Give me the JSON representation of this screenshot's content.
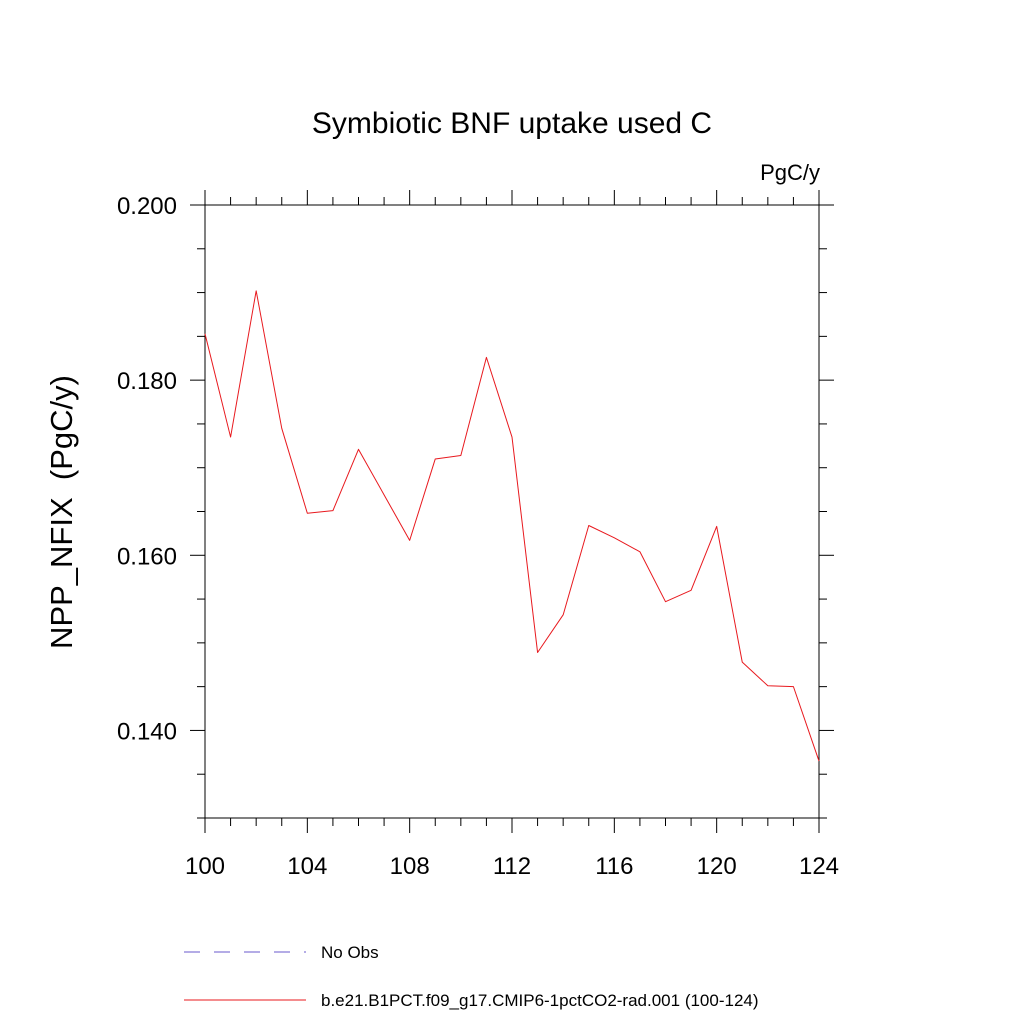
{
  "chart_data": {
    "type": "line",
    "title": "Symbiotic BNF uptake used C",
    "units_label": "PgC/y",
    "ylabel": "NPP_NFIX  (PgC/y)",
    "xlabel": "",
    "xlim": [
      100,
      124
    ],
    "ylim": [
      0.13,
      0.2
    ],
    "x_ticks": [
      100,
      104,
      108,
      112,
      116,
      120,
      124
    ],
    "x_tick_labels": [
      "100",
      "104",
      "108",
      "112",
      "116",
      "120",
      "124"
    ],
    "x_minor_step": 1,
    "y_ticks": [
      0.14,
      0.16,
      0.18,
      0.2
    ],
    "y_tick_labels": [
      "0.140",
      "0.160",
      "0.180",
      "0.200"
    ],
    "y_minor_step": 0.005,
    "grid": false,
    "legend_position": "bottom",
    "series": [
      {
        "name": "b.e21.B1PCT.f09_g17.CMIP6-1pctCO2-rad.001 (100-124)",
        "color": "#e8191e",
        "style": "solid",
        "x": [
          100,
          101,
          102,
          103,
          104,
          105,
          106,
          107,
          108,
          109,
          110,
          111,
          112,
          113,
          114,
          115,
          116,
          117,
          118,
          119,
          120,
          121,
          122,
          123,
          124
        ],
        "y": [
          0.1853,
          0.1735,
          0.1902,
          0.1745,
          0.1648,
          0.1651,
          0.1721,
          0.1669,
          0.1617,
          0.171,
          0.1714,
          0.1826,
          0.1735,
          0.1489,
          0.1532,
          0.1634,
          0.162,
          0.1604,
          0.1547,
          0.156,
          0.1633,
          0.1478,
          0.1451,
          0.145,
          0.1365
        ]
      }
    ],
    "legend": [
      {
        "label": "No Obs",
        "color": "#6a5acd",
        "style": "dashed"
      },
      {
        "label": "b.e21.B1PCT.f09_g17.CMIP6-1pctCO2-rad.001 (100-124)",
        "color": "#e8191e",
        "style": "solid"
      }
    ]
  }
}
